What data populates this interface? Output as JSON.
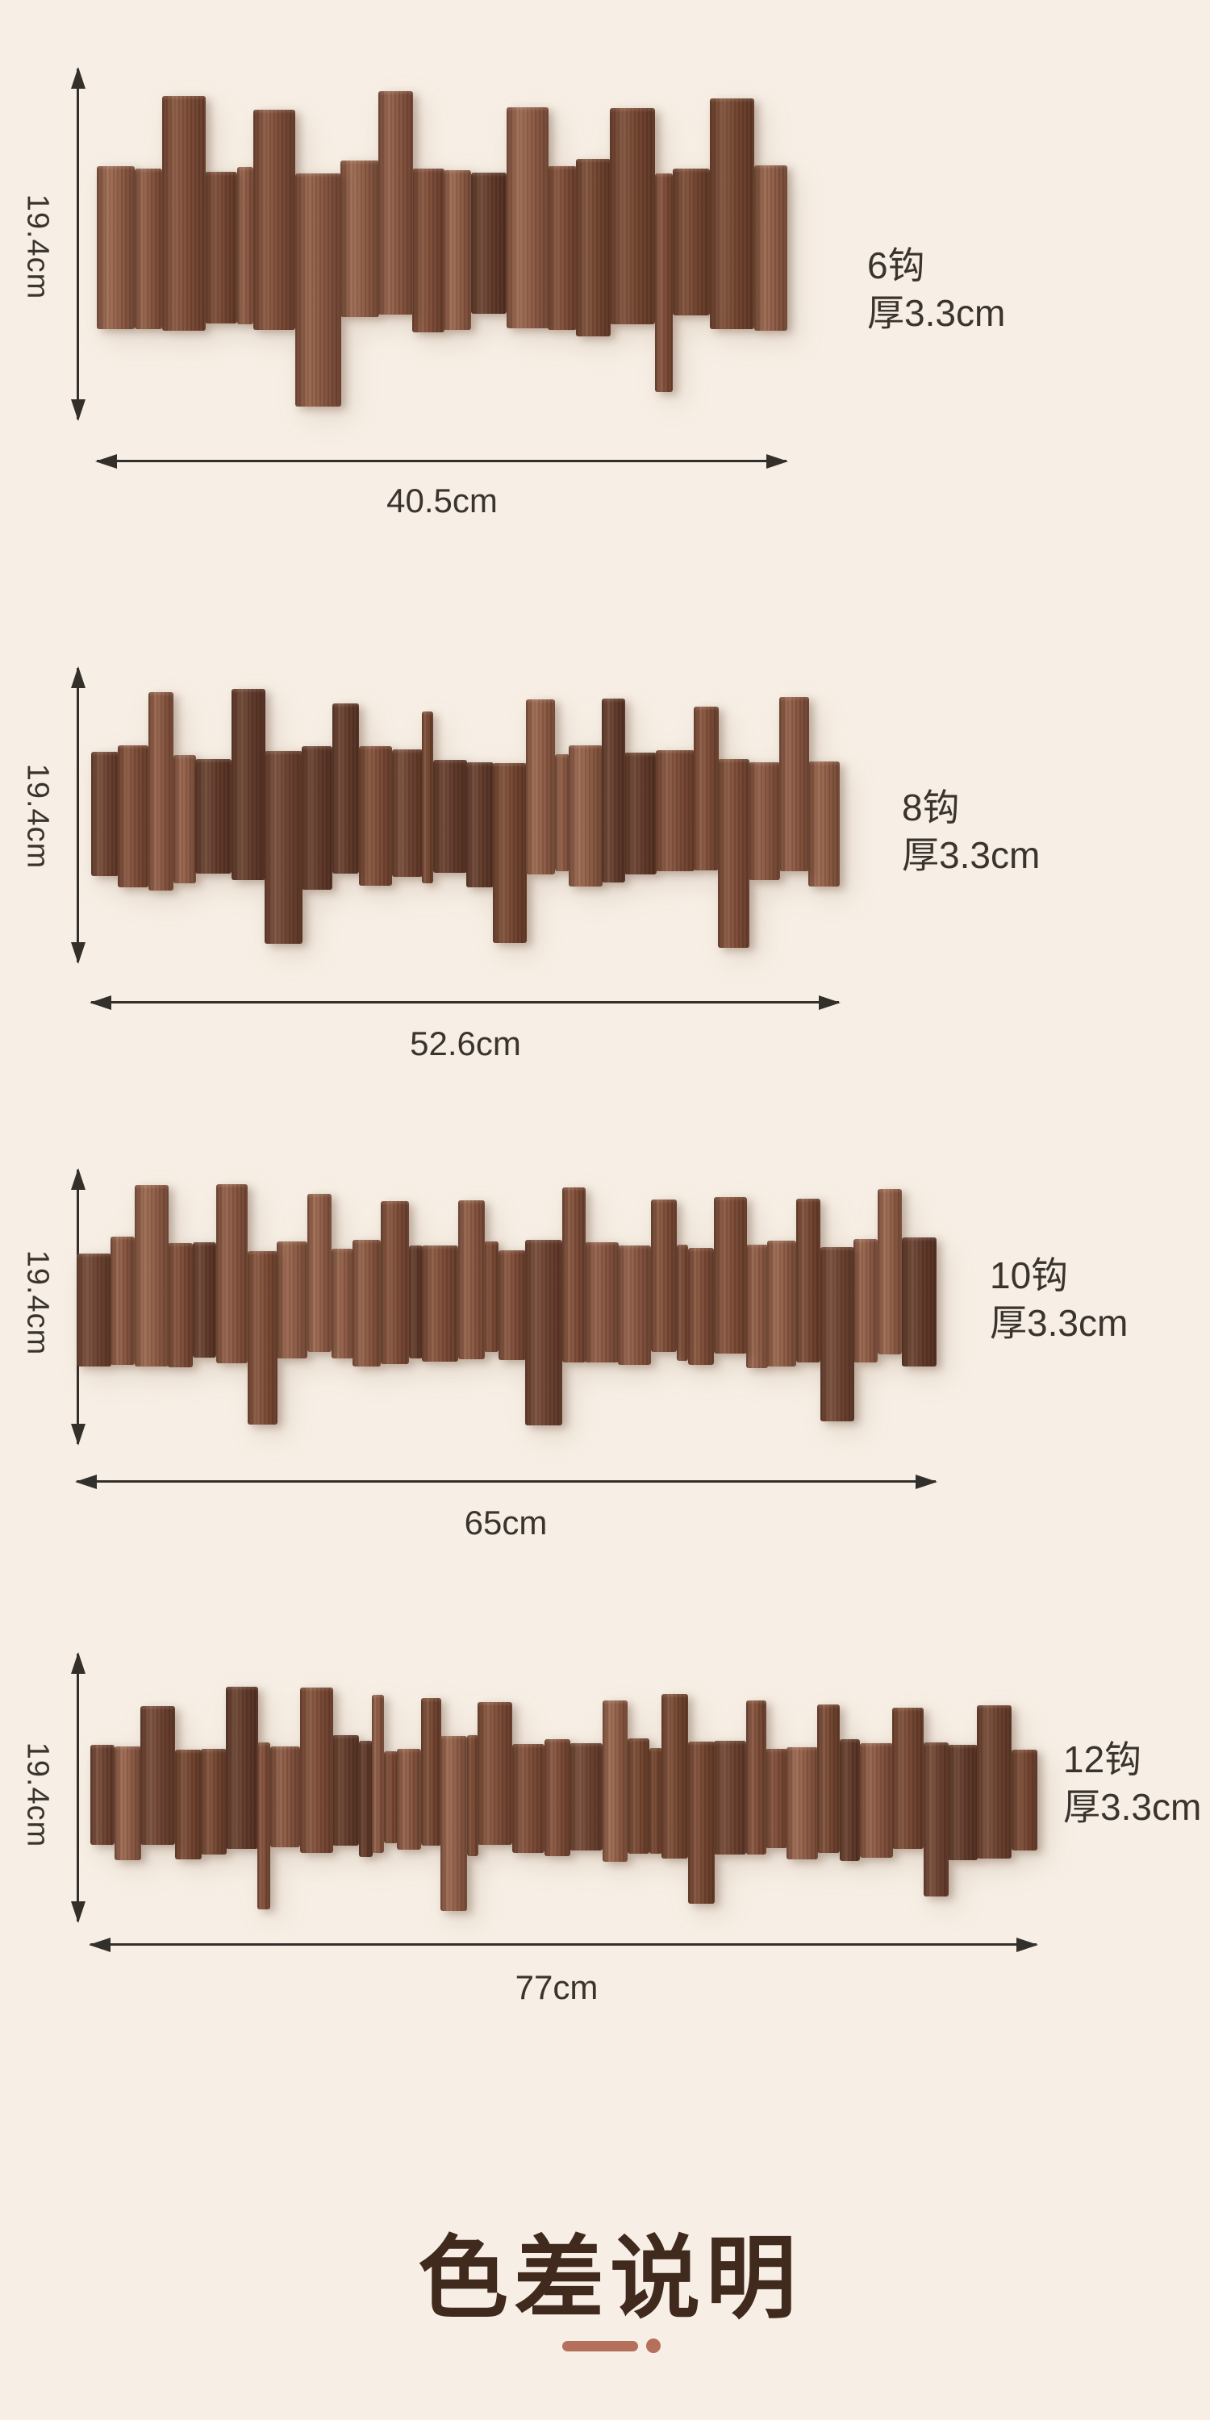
{
  "page": {
    "background": "#f7efe5"
  },
  "products": [
    {
      "hooks": 6,
      "hooks_label": "6钩",
      "thickness_label": "厚3.3cm",
      "height_label": "19.4cm",
      "width_label": "40.5cm",
      "rack": {
        "slats": 20,
        "hooks": 6,
        "drops": 2,
        "seed": 11
      }
    },
    {
      "hooks": 8,
      "hooks_label": "8钩",
      "thickness_label": "厚3.3cm",
      "height_label": "19.4cm",
      "width_label": "52.6cm",
      "rack": {
        "slats": 26,
        "hooks": 8,
        "drops": 3,
        "seed": 23
      }
    },
    {
      "hooks": 10,
      "hooks_label": "10钩",
      "thickness_label": "厚3.3cm",
      "height_label": "19.4cm",
      "width_label": "65cm",
      "rack": {
        "slats": 32,
        "hooks": 10,
        "drops": 3,
        "seed": 37
      }
    },
    {
      "hooks": 12,
      "hooks_label": "12钩",
      "thickness_label": "厚3.3cm",
      "height_label": "19.4cm",
      "width_label": "77cm",
      "rack": {
        "slats": 38,
        "hooks": 12,
        "drops": 4,
        "seed": 51
      }
    }
  ],
  "footer": {
    "title": "色差说明"
  },
  "colors": {
    "ink": "#33302b",
    "text": "#3a342e",
    "heading": "#40291d",
    "accent": "#b4705a",
    "wood": [
      "#7e4c37",
      "#6c4130",
      "#8a5741",
      "#744530",
      "#5f3829",
      "#935f48"
    ]
  }
}
